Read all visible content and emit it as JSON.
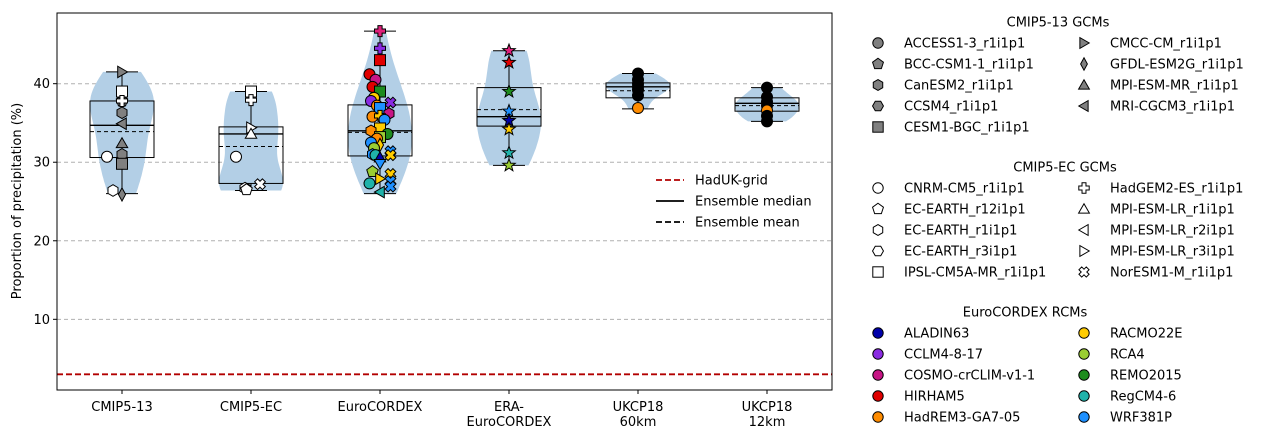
{
  "chart_data": {
    "type": "violin+box+scatter",
    "title": "",
    "xlabel": "",
    "ylabel": "Proportion of precipitation (%)",
    "ylim": [
      1,
      49
    ],
    "yticks": [
      10,
      20,
      30,
      40
    ],
    "grid": "horizontal dashed",
    "categories": [
      "CMIP5-13",
      "CMIP5-EC",
      "EuroCORDEX",
      "ERA-\nEuroCORDEX",
      "UKCP18\n60km",
      "UKCP18\n12km"
    ],
    "hadukgrid": 3.0,
    "groups": [
      {
        "name": "CMIP5-13",
        "violin_min": 26.0,
        "violin_max": 41.5,
        "q1": 30.6,
        "median": 34.7,
        "mean": 33.9,
        "q3": 37.8,
        "whisker_low": 26.0,
        "whisker_high": 41.5,
        "points": [
          {
            "y": 41.5,
            "marker": "tri-right",
            "color": "#808080"
          },
          {
            "y": 38.8,
            "marker": "circle",
            "color": "#808080"
          },
          {
            "y": 38.3,
            "marker": "diamond",
            "color": "#808080"
          },
          {
            "y": 37.8,
            "marker": "pentagon",
            "color": "#808080"
          },
          {
            "y": 36.3,
            "marker": "hexagon",
            "color": "#808080"
          },
          {
            "y": 34.9,
            "marker": "tri-left",
            "color": "#808080"
          },
          {
            "y": 32.4,
            "marker": "tri-up",
            "color": "#808080"
          },
          {
            "y": 31.0,
            "marker": "hexagon",
            "color": "#808080"
          },
          {
            "y": 29.8,
            "marker": "square",
            "color": "#808080"
          },
          {
            "y": 39.0,
            "marker": "square",
            "color": "#ffffff"
          },
          {
            "y": 37.8,
            "marker": "cross",
            "color": "#ffffff"
          },
          {
            "y": 30.7,
            "marker": "circle",
            "color": "#ffffff",
            "dx": -1
          },
          {
            "y": 26.4,
            "marker": "hexagon",
            "color": "#ffffff",
            "dx": -0.6
          },
          {
            "y": 25.9,
            "marker": "diamond",
            "color": "#808080"
          }
        ]
      },
      {
        "name": "CMIP5-EC",
        "violin_min": 26.4,
        "violin_max": 39.0,
        "q1": 27.3,
        "median": 33.6,
        "mean": 32.0,
        "q3": 34.5,
        "whisker_low": 26.4,
        "whisker_high": 39.0,
        "points": [
          {
            "y": 39.0,
            "marker": "square",
            "color": "#ffffff"
          },
          {
            "y": 37.9,
            "marker": "cross",
            "color": "#ffffff"
          },
          {
            "y": 34.4,
            "marker": "tri-right",
            "color": "#ffffff"
          },
          {
            "y": 33.6,
            "marker": "tri-up",
            "color": "#ffffff"
          },
          {
            "y": 30.7,
            "marker": "circle",
            "color": "#ffffff",
            "dx": -1
          },
          {
            "y": 27.2,
            "marker": "xcross",
            "color": "#ffffff",
            "dx": 0.6
          },
          {
            "y": 26.7,
            "marker": "hexagon",
            "color": "#ffffff",
            "dx": -0.4
          },
          {
            "y": 26.5,
            "marker": "pentagon",
            "color": "#ffffff",
            "dx": -0.3
          }
        ]
      },
      {
        "name": "EuroCORDEX",
        "violin_min": 26.0,
        "violin_max": 46.7,
        "q1": 30.8,
        "median": 34.0,
        "mean": 33.8,
        "q3": 37.3,
        "whisker_low": 26.0,
        "whisker_high": 46.7,
        "points": [
          {
            "y": 46.7,
            "marker": "cross",
            "color": "#e0207b"
          },
          {
            "y": 44.5,
            "marker": "cross",
            "color": "#8a2be2"
          },
          {
            "y": 43.0,
            "marker": "square",
            "color": "#e00000"
          },
          {
            "y": 41.2,
            "marker": "circle",
            "color": "#e00000",
            "dx": -0.7
          },
          {
            "y": 40.5,
            "marker": "circle",
            "color": "#c71585",
            "dx": -0.3
          },
          {
            "y": 39.6,
            "marker": "circle",
            "color": "#e00000",
            "dx": -0.5
          },
          {
            "y": 39.0,
            "marker": "square",
            "color": "#1e8c1e"
          },
          {
            "y": 38.2,
            "marker": "circle",
            "color": "#ffcc00",
            "dx": -0.4
          },
          {
            "y": 37.8,
            "marker": "circle",
            "color": "#8a2be2",
            "dx": -0.6
          },
          {
            "y": 37.6,
            "marker": "xcross",
            "color": "#8a2be2",
            "dx": 0.7
          },
          {
            "y": 37.2,
            "marker": "circle",
            "color": "#ff8c00",
            "dx": -0.2
          },
          {
            "y": 36.9,
            "marker": "square",
            "color": "#1e90ff"
          },
          {
            "y": 36.2,
            "marker": "hexagon",
            "color": "#c71585",
            "dx": 0.6
          },
          {
            "y": 35.8,
            "marker": "circle",
            "color": "#ff8c00",
            "dx": -0.5
          },
          {
            "y": 35.9,
            "marker": "cross",
            "color": "#ffcc00"
          },
          {
            "y": 35.4,
            "marker": "circle",
            "color": "#1e90ff",
            "dx": 0.3
          },
          {
            "y": 34.3,
            "marker": "square",
            "color": "#ffcc00"
          },
          {
            "y": 34.0,
            "marker": "hexagon",
            "color": "#ff8c00",
            "dx": -0.6
          },
          {
            "y": 33.6,
            "marker": "circle",
            "color": "#1e8c1e",
            "dx": 0.5
          },
          {
            "y": 33.2,
            "marker": "square",
            "color": "#9acd32"
          },
          {
            "y": 33.0,
            "marker": "circle",
            "color": "#ff8c00",
            "dx": -0.2
          },
          {
            "y": 32.5,
            "marker": "circle",
            "color": "#1e90ff",
            "dx": -0.6
          },
          {
            "y": 32.2,
            "marker": "diamond",
            "color": "#ffcc00"
          },
          {
            "y": 31.8,
            "marker": "circle",
            "color": "#9acd32",
            "dx": -0.4
          },
          {
            "y": 31.4,
            "marker": "xcross",
            "color": "#1e90ff",
            "dx": 0.7
          },
          {
            "y": 31.0,
            "marker": "hexagon",
            "color": "#1e90ff",
            "dx": -0.5
          },
          {
            "y": 30.9,
            "marker": "circle",
            "color": "#20b2aa",
            "dx": -0.3
          },
          {
            "y": 30.6,
            "marker": "tri-up",
            "color": "#0000aa"
          },
          {
            "y": 30.9,
            "marker": "xcross",
            "color": "#ffcc00",
            "dx": 0.7
          },
          {
            "y": 29.8,
            "marker": "tri-down",
            "color": "#1e90ff"
          },
          {
            "y": 28.8,
            "marker": "pentagon",
            "color": "#9acd32",
            "dx": -0.5
          },
          {
            "y": 28.5,
            "marker": "xcross",
            "color": "#ffcc00",
            "dx": 0.7
          },
          {
            "y": 27.9,
            "marker": "tri-right",
            "color": "#ffcc00"
          },
          {
            "y": 27.6,
            "marker": "xcross",
            "color": "#1e90ff",
            "dx": 0.7
          },
          {
            "y": 27.3,
            "marker": "circle",
            "color": "#20b2aa",
            "dx": -0.7
          },
          {
            "y": 26.9,
            "marker": "xcross",
            "color": "#1e90ff",
            "dx": 0.7
          },
          {
            "y": 26.2,
            "marker": "tri-left",
            "color": "#20b2aa"
          }
        ]
      },
      {
        "name": "ERA-EuroCORDEX",
        "violin_min": 29.6,
        "violin_max": 44.2,
        "q1": 34.6,
        "median": 35.8,
        "mean": 36.7,
        "q3": 39.5,
        "whisker_low": 29.6,
        "whisker_high": 44.2,
        "points": [
          {
            "y": 44.2,
            "marker": "star",
            "color": "#e0207b"
          },
          {
            "y": 42.7,
            "marker": "star",
            "color": "#e00000"
          },
          {
            "y": 39.0,
            "marker": "star",
            "color": "#1e8c1e"
          },
          {
            "y": 36.5,
            "marker": "star",
            "color": "#1e90ff"
          },
          {
            "y": 35.3,
            "marker": "star",
            "color": "#0000aa"
          },
          {
            "y": 34.2,
            "marker": "star",
            "color": "#ffcc00"
          },
          {
            "y": 31.2,
            "marker": "star",
            "color": "#20b2aa"
          },
          {
            "y": 29.6,
            "marker": "star",
            "color": "#9acd32"
          }
        ]
      },
      {
        "name": "UKCP18 60km",
        "violin_min": 36.8,
        "violin_max": 41.3,
        "q1": 38.2,
        "median": 39.6,
        "mean": 39.1,
        "q3": 40.1,
        "whisker_low": 36.8,
        "whisker_high": 41.3,
        "points": [
          {
            "y": 41.3,
            "marker": "circle",
            "color": "#000000"
          },
          {
            "y": 40.5,
            "marker": "circle",
            "color": "#000000"
          },
          {
            "y": 40.0,
            "marker": "circle",
            "color": "#000000"
          },
          {
            "y": 39.6,
            "marker": "circle",
            "color": "#000000"
          },
          {
            "y": 39.2,
            "marker": "circle",
            "color": "#000000"
          },
          {
            "y": 38.5,
            "marker": "circle",
            "color": "#000000"
          },
          {
            "y": 36.9,
            "marker": "circle",
            "color": "#ff8c00"
          }
        ]
      },
      {
        "name": "UKCP18 12km",
        "violin_min": 35.2,
        "violin_max": 39.5,
        "q1": 36.5,
        "median": 37.5,
        "mean": 37.2,
        "q3": 38.2,
        "whisker_low": 35.2,
        "whisker_high": 39.5,
        "points": [
          {
            "y": 39.5,
            "marker": "circle",
            "color": "#000000"
          },
          {
            "y": 38.3,
            "marker": "circle",
            "color": "#000000"
          },
          {
            "y": 37.7,
            "marker": "circle",
            "color": "#000000"
          },
          {
            "y": 37.2,
            "marker": "circle",
            "color": "#000000"
          },
          {
            "y": 36.6,
            "marker": "circle",
            "color": "#ff8c00"
          },
          {
            "y": 35.9,
            "marker": "circle",
            "color": "#000000"
          },
          {
            "y": 35.2,
            "marker": "circle",
            "color": "#000000"
          }
        ]
      }
    ],
    "inner_legend": [
      {
        "label": "HadUK-grid",
        "style": "dashed",
        "color": "#b20000"
      },
      {
        "label": "Ensemble median",
        "style": "solid",
        "color": "#000000"
      },
      {
        "label": "Ensemble mean",
        "style": "dashed",
        "color": "#000000"
      }
    ],
    "legend_sections": [
      {
        "title": "CMIP5-13 GCMs",
        "col1": [
          {
            "label": "ACCESS1-3_r1i1p1",
            "marker": "circle",
            "color": "#808080"
          },
          {
            "label": "BCC-CSM1-1_r1i1p1",
            "marker": "pentagon",
            "color": "#808080"
          },
          {
            "label": "CanESM2_r1i1p1",
            "marker": "hexagon",
            "color": "#808080"
          },
          {
            "label": "CCSM4_r1i1p1",
            "marker": "hexagon2",
            "color": "#808080"
          },
          {
            "label": "CESM1-BGC_r1i1p1",
            "marker": "square",
            "color": "#808080"
          }
        ],
        "col2": [
          {
            "label": "CMCC-CM_r1i1p1",
            "marker": "tri-right",
            "color": "#808080"
          },
          {
            "label": "GFDL-ESM2G_r1i1p1",
            "marker": "diamond",
            "color": "#808080"
          },
          {
            "label": "MPI-ESM-MR_r1i1p1",
            "marker": "tri-up",
            "color": "#808080"
          },
          {
            "label": "MRI-CGCM3_r1i1p1",
            "marker": "tri-left",
            "color": "#808080"
          }
        ]
      },
      {
        "title": "CMIP5-EC GCMs",
        "col1": [
          {
            "label": "CNRM-CM5_r1i1p1",
            "marker": "circle",
            "color": "#ffffff"
          },
          {
            "label": "EC-EARTH_r12i1p1",
            "marker": "pentagon",
            "color": "#ffffff"
          },
          {
            "label": "EC-EARTH_r1i1p1",
            "marker": "hexagon",
            "color": "#ffffff"
          },
          {
            "label": "EC-EARTH_r3i1p1",
            "marker": "hexagon2",
            "color": "#ffffff"
          },
          {
            "label": "IPSL-CM5A-MR_r1i1p1",
            "marker": "square",
            "color": "#ffffff"
          }
        ],
        "col2": [
          {
            "label": "HadGEM2-ES_r1i1p1",
            "marker": "cross",
            "color": "#ffffff"
          },
          {
            "label": "MPI-ESM-LR_r1i1p1",
            "marker": "tri-up",
            "color": "#ffffff"
          },
          {
            "label": "MPI-ESM-LR_r2i1p1",
            "marker": "tri-left",
            "color": "#ffffff"
          },
          {
            "label": "MPI-ESM-LR_r3i1p1",
            "marker": "tri-right",
            "color": "#ffffff"
          },
          {
            "label": "NorESM1-M_r1i1p1",
            "marker": "xcross",
            "color": "#ffffff"
          }
        ]
      },
      {
        "title": "EuroCORDEX RCMs",
        "col1": [
          {
            "label": "ALADIN63",
            "marker": "circle",
            "color": "#0000aa"
          },
          {
            "label": "CCLM4-8-17",
            "marker": "circle",
            "color": "#8a2be2"
          },
          {
            "label": "COSMO-crCLIM-v1-1",
            "marker": "circle",
            "color": "#c71585"
          },
          {
            "label": "HIRHAM5",
            "marker": "circle",
            "color": "#e00000"
          },
          {
            "label": "HadREM3-GA7-05",
            "marker": "circle",
            "color": "#ff8c00"
          }
        ],
        "col2": [
          {
            "label": "RACMO22E",
            "marker": "circle",
            "color": "#ffcc00"
          },
          {
            "label": "RCA4",
            "marker": "circle",
            "color": "#9acd32"
          },
          {
            "label": "REMO2015",
            "marker": "circle",
            "color": "#1e8c1e"
          },
          {
            "label": "RegCM4-6",
            "marker": "circle",
            "color": "#20b2aa"
          },
          {
            "label": "WRF381P",
            "marker": "circle",
            "color": "#1e90ff"
          }
        ]
      }
    ],
    "colors": {
      "violin": "#b3cfe6",
      "grid": "#b0b0b0",
      "hadukgrid": "#b20000"
    }
  }
}
